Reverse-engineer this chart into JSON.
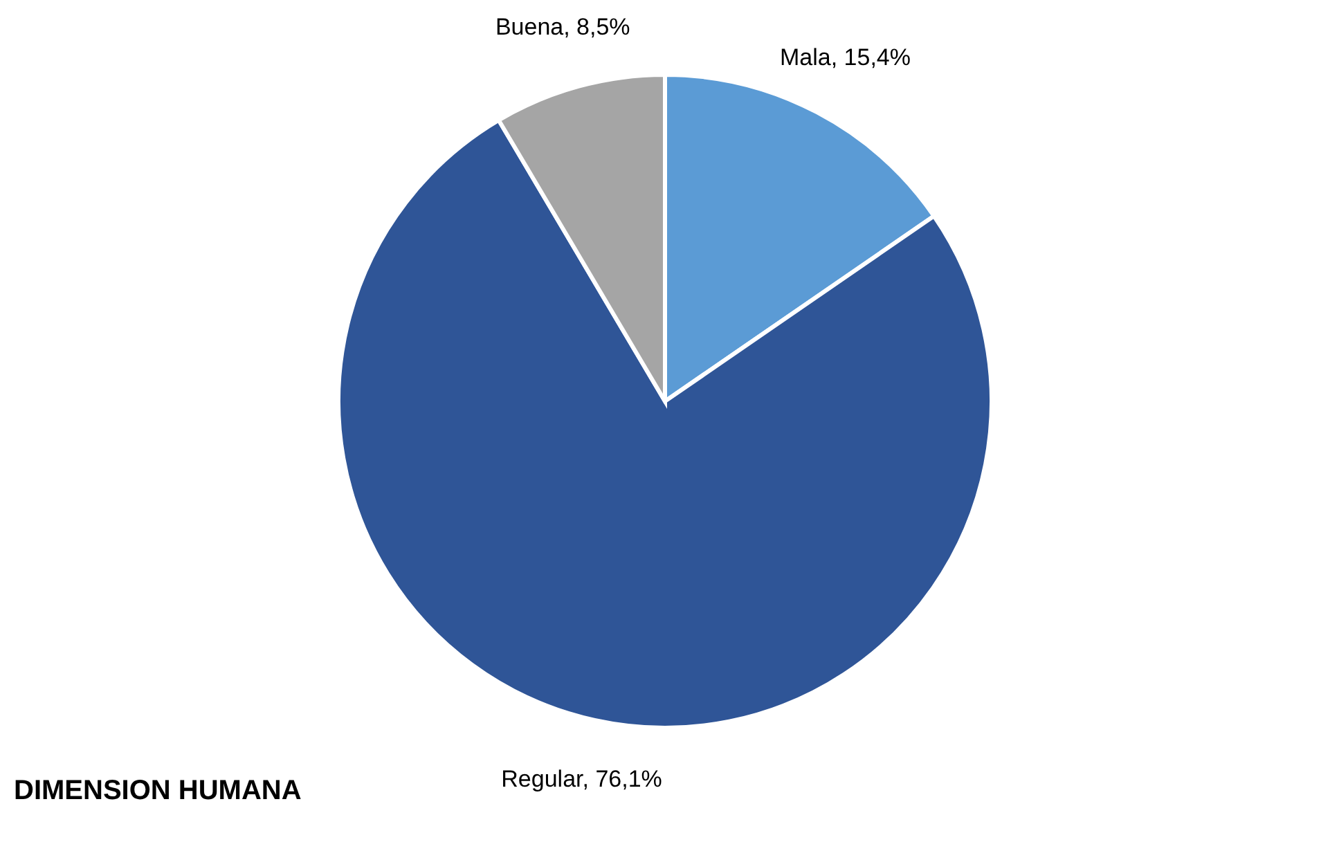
{
  "chart_data": {
    "type": "pie",
    "title": "DIMENSION HUMANA",
    "categories": [
      "Mala",
      "Regular",
      "Buena"
    ],
    "values": [
      15.4,
      76.1,
      8.5
    ],
    "colors": [
      "#5b9bd5",
      "#2f5597",
      "#a5a5a5"
    ],
    "value_labels": [
      "15,4%",
      "76,1%",
      "8,5%"
    ],
    "legend": false
  }
}
